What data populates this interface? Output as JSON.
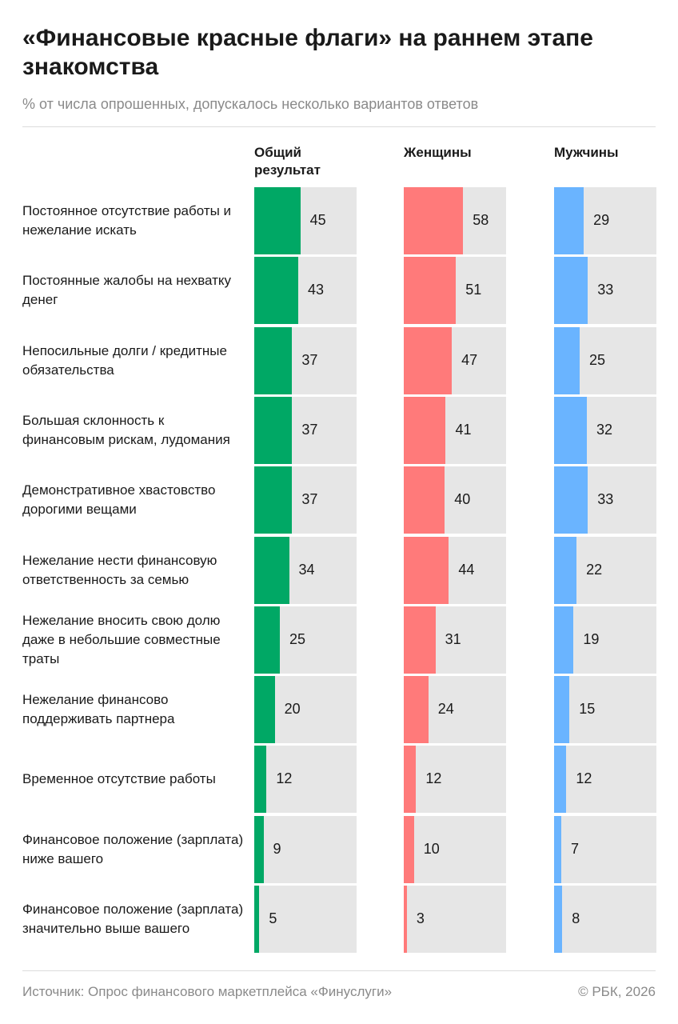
{
  "chart_data": {
    "type": "bar",
    "title": "«Финансовые красные флаги» на раннем этапе знакомства",
    "subtitle": "% от числа опрошенных, допускалось несколько вариантов ответов",
    "source": "Источник: Опрос финансового маркетплейса «Финуслуги»",
    "credit": "© РБК, 2026",
    "categories": [
      "Постоянное отсутствие работы и нежелание искать",
      "Постоянные жалобы на нехватку денег",
      "Непосильные долги / кредитные обязательства",
      "Большая склонность к финансовым рискам, лудомания",
      "Демонстративное хвастовство дорогими вещами",
      "Нежелание нести финансовую ответственность за семью",
      "Нежелание вносить свою долю даже в небольшие совместные траты",
      "Нежелание финансово поддерживать партнера",
      "Временное отсутствие работы",
      "Финансовое положение (зарплата) ниже вашего",
      "Финансовое положение (зарплата) значительно выше вашего"
    ],
    "series": [
      {
        "name": "Общий результат",
        "color": "#00a865",
        "values": [
          45,
          43,
          37,
          37,
          37,
          34,
          25,
          20,
          12,
          9,
          5
        ]
      },
      {
        "name": "Женщины",
        "color": "#ff7a7a",
        "values": [
          58,
          51,
          47,
          41,
          40,
          44,
          31,
          24,
          12,
          10,
          3
        ]
      },
      {
        "name": "Мужчины",
        "color": "#6ab4ff",
        "values": [
          29,
          33,
          25,
          32,
          33,
          22,
          19,
          15,
          12,
          7,
          8
        ]
      }
    ],
    "xlim": [
      0,
      100
    ]
  }
}
